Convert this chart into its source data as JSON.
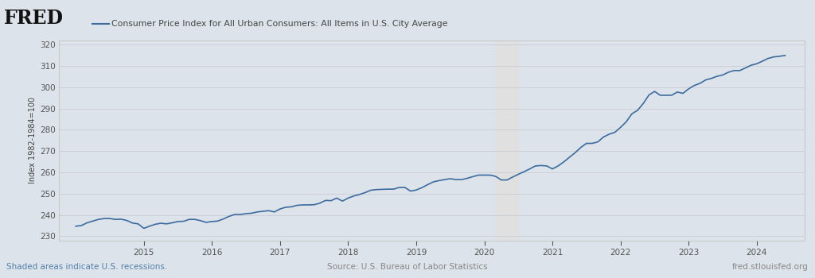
{
  "title": "Consumer Price Index for All Urban Consumers: All Items in U.S. City Average",
  "ylabel": "Index 1982-1984=100",
  "bg_color": "#dce3ea",
  "plot_bg_color": "#dce3ea",
  "line_color": "#3d6b9e",
  "recession_color": "#e0e0e0",
  "recession_start": 2020.17,
  "recession_end": 2020.5,
  "ylim": [
    228,
    322
  ],
  "yticks": [
    230,
    240,
    250,
    260,
    270,
    280,
    290,
    300,
    310,
    320
  ],
  "xlim_start": 2013.75,
  "xlim_end": 2024.7,
  "xtick_years": [
    2015,
    2016,
    2017,
    2018,
    2019,
    2020,
    2021,
    2022,
    2023,
    2024
  ],
  "footer_left": "Shaded areas indicate U.S. recessions.",
  "footer_center": "Source: U.S. Bureau of Labor Statistics",
  "footer_right": "fred.stlouisfed.org",
  "fred_text": "FRED",
  "cpi_data": {
    "dates": [
      2014.0,
      2014.083,
      2014.167,
      2014.25,
      2014.333,
      2014.417,
      2014.5,
      2014.583,
      2014.667,
      2014.75,
      2014.833,
      2014.917,
      2015.0,
      2015.083,
      2015.167,
      2015.25,
      2015.333,
      2015.417,
      2015.5,
      2015.583,
      2015.667,
      2015.75,
      2015.833,
      2015.917,
      2016.0,
      2016.083,
      2016.167,
      2016.25,
      2016.333,
      2016.417,
      2016.5,
      2016.583,
      2016.667,
      2016.75,
      2016.833,
      2016.917,
      2017.0,
      2017.083,
      2017.167,
      2017.25,
      2017.333,
      2017.417,
      2017.5,
      2017.583,
      2017.667,
      2017.75,
      2017.833,
      2017.917,
      2018.0,
      2018.083,
      2018.167,
      2018.25,
      2018.333,
      2018.417,
      2018.5,
      2018.583,
      2018.667,
      2018.75,
      2018.833,
      2018.917,
      2019.0,
      2019.083,
      2019.167,
      2019.25,
      2019.333,
      2019.417,
      2019.5,
      2019.583,
      2019.667,
      2019.75,
      2019.833,
      2019.917,
      2020.0,
      2020.083,
      2020.167,
      2020.25,
      2020.333,
      2020.417,
      2020.5,
      2020.583,
      2020.667,
      2020.75,
      2020.833,
      2020.917,
      2021.0,
      2021.083,
      2021.167,
      2021.25,
      2021.333,
      2021.417,
      2021.5,
      2021.583,
      2021.667,
      2021.75,
      2021.833,
      2021.917,
      2022.0,
      2022.083,
      2022.167,
      2022.25,
      2022.333,
      2022.417,
      2022.5,
      2022.583,
      2022.667,
      2022.75,
      2022.833,
      2022.917,
      2023.0,
      2023.083,
      2023.167,
      2023.25,
      2023.333,
      2023.417,
      2023.5,
      2023.583,
      2023.667,
      2023.75,
      2023.833,
      2023.917,
      2024.0,
      2024.083,
      2024.167,
      2024.25,
      2024.333,
      2024.417
    ],
    "values": [
      234.7,
      235.0,
      236.3,
      237.1,
      237.9,
      238.3,
      238.3,
      237.9,
      238.0,
      237.4,
      236.2,
      235.8,
      233.7,
      234.7,
      235.6,
      236.1,
      235.8,
      236.3,
      236.9,
      237.0,
      237.9,
      237.9,
      237.3,
      236.5,
      236.9,
      237.1,
      238.1,
      239.3,
      240.2,
      240.2,
      240.6,
      240.8,
      241.4,
      241.7,
      242.0,
      241.4,
      242.8,
      243.6,
      243.8,
      244.5,
      244.7,
      244.7,
      244.8,
      245.5,
      246.8,
      246.7,
      247.9,
      246.5,
      247.9,
      248.9,
      249.6,
      250.5,
      251.6,
      251.9,
      252.0,
      252.1,
      252.1,
      252.9,
      252.9,
      251.2,
      251.7,
      252.8,
      254.2,
      255.5,
      256.1,
      256.6,
      257.0,
      256.6,
      256.6,
      257.2,
      258.0,
      258.7,
      258.7,
      258.7,
      258.1,
      256.4,
      256.4,
      257.8,
      259.1,
      260.3,
      261.6,
      263.0,
      263.2,
      263.0,
      261.6,
      263.0,
      264.9,
      267.1,
      269.2,
      271.7,
      273.6,
      273.6,
      274.3,
      276.6,
      277.9,
      278.8,
      281.1,
      283.7,
      287.5,
      289.1,
      292.3,
      296.3,
      298.0,
      296.2,
      296.2,
      296.2,
      297.7,
      297.1,
      299.2,
      300.8,
      301.8,
      303.4,
      304.1,
      305.1,
      305.7,
      307.0,
      307.8,
      307.8,
      309.0,
      310.3,
      311.0,
      312.2,
      313.5,
      314.2,
      314.5,
      314.9
    ]
  }
}
